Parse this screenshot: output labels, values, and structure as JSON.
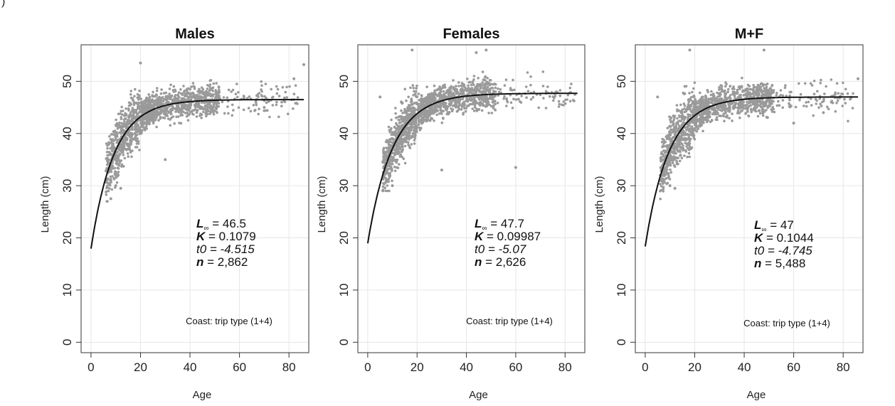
{
  "figure_label": ")",
  "chart_data": [
    {
      "type": "scatter",
      "title": "Males",
      "xlabel": "Age",
      "ylabel": "Length (cm)",
      "xlim": [
        -4,
        88
      ],
      "ylim": [
        -2,
        57
      ],
      "xticks": [
        "0",
        "20",
        "40",
        "60",
        "80"
      ],
      "yticks": [
        "0",
        "10",
        "20",
        "30",
        "40",
        "50"
      ],
      "grid": true,
      "series": [
        {
          "kind": "points",
          "color": "#9a9a9a",
          "approx_x_range": [
            5,
            86
          ],
          "approx_y_range": [
            27,
            53.5
          ],
          "scatter_points": [
            [
              20,
              53.5
            ],
            [
              86,
              53.2
            ],
            [
              70,
              45
            ],
            [
              82,
              50.5
            ],
            [
              10,
              30
            ],
            [
              12,
              29.5
            ],
            [
              30,
              35
            ],
            [
              8,
              27.5
            ]
          ]
        },
        {
          "kind": "von-bertalanffy-fit",
          "color": "#111111",
          "Linf": 46.5,
          "K": 0.1079,
          "t0": -4.515,
          "x_range": [
            0,
            86
          ]
        }
      ],
      "annotation": {
        "linf_label": "L",
        "linf_subscript": "∞",
        "linf_value": "= 46.5",
        "k_label": "K",
        "k_value": "= 0.1079",
        "t0_text": "t0 = -4.515",
        "n_label": "n",
        "n_value": "= 2,862",
        "note": "Coast: trip type (1+4)"
      }
    },
    {
      "type": "scatter",
      "title": "Females",
      "xlabel": "Age",
      "ylabel": "Length (cm)",
      "xlim": [
        -4,
        88
      ],
      "ylim": [
        -2,
        57
      ],
      "xticks": [
        "0",
        "20",
        "40",
        "60",
        "80"
      ],
      "yticks": [
        "0",
        "10",
        "20",
        "30",
        "40",
        "50"
      ],
      "grid": true,
      "series": [
        {
          "kind": "points",
          "color": "#9a9a9a",
          "approx_x_range": [
            5,
            85
          ],
          "approx_y_range": [
            29,
            56
          ],
          "scatter_points": [
            [
              18,
              56
            ],
            [
              44,
              55.5
            ],
            [
              48,
              56
            ],
            [
              5,
              47
            ],
            [
              60,
              33.5
            ],
            [
              84,
              47.5
            ],
            [
              10,
              30
            ],
            [
              30,
              33
            ]
          ]
        },
        {
          "kind": "von-bertalanffy-fit",
          "color": "#111111",
          "Linf": 47.7,
          "K": 0.09987,
          "t0": -5.07,
          "x_range": [
            0,
            85
          ]
        }
      ],
      "annotation": {
        "linf_label": "L",
        "linf_subscript": "∞",
        "linf_value": "= 47.7",
        "k_label": "K",
        "k_value": "= 0.09987",
        "t0_text": "t0 = -5.07",
        "n_label": "n",
        "n_value": "= 2,626",
        "note": "Coast: trip type (1+4)"
      }
    },
    {
      "type": "scatter",
      "title": "M+F",
      "xlabel": "Age",
      "ylabel": "Length (cm)",
      "xlim": [
        -4,
        88
      ],
      "ylim": [
        -2,
        57
      ],
      "xticks": [
        "0",
        "20",
        "40",
        "60",
        "80"
      ],
      "yticks": [
        "0",
        "10",
        "20",
        "30",
        "40",
        "50"
      ],
      "grid": true,
      "series": [
        {
          "kind": "points",
          "color": "#9a9a9a",
          "approx_x_range": [
            5,
            86
          ],
          "approx_y_range": [
            27,
            56
          ],
          "scatter_points": [
            [
              18,
              56
            ],
            [
              48,
              56
            ],
            [
              5,
              47
            ],
            [
              86,
              50.5
            ],
            [
              72,
              44
            ],
            [
              60,
              42
            ],
            [
              10,
              30
            ],
            [
              12,
              29.5
            ]
          ]
        },
        {
          "kind": "von-bertalanffy-fit",
          "color": "#111111",
          "Linf": 47,
          "K": 0.1044,
          "t0": -4.745,
          "x_range": [
            0,
            86
          ]
        }
      ],
      "annotation": {
        "linf_label": "L",
        "linf_subscript": "∞",
        "linf_value": "= 47",
        "k_label": "K",
        "k_value": "= 0.1044",
        "t0_text": "t0 = -4.745",
        "n_label": "n",
        "n_value": "= 5,488",
        "note": "Coast: trip type (1+4)"
      }
    }
  ]
}
